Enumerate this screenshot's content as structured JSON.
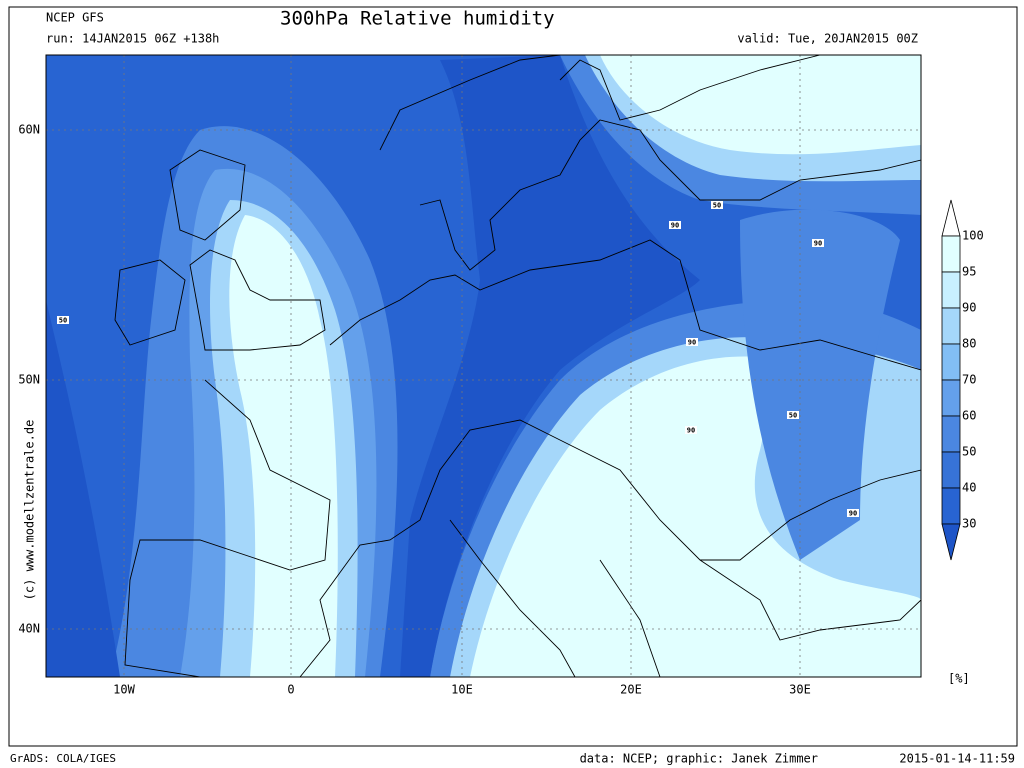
{
  "header": {
    "model": "NCEP GFS",
    "title": "300hPa Relative humidity",
    "run": "run: 14JAN2015 06Z +138h",
    "valid": "valid: Tue, 20JAN2015 00Z"
  },
  "map": {
    "lat_labels": [
      "60N",
      "50N",
      "40N"
    ],
    "lon_labels": [
      "10W",
      "0",
      "10E",
      "20E",
      "30E"
    ],
    "contour_labels": [
      "50",
      "90",
      "50",
      "90",
      "90",
      "90",
      "50",
      "90"
    ]
  },
  "colorbar": {
    "levels": [
      "100",
      "95",
      "90",
      "80",
      "70",
      "60",
      "50",
      "40",
      "30"
    ],
    "colors": [
      "#ffffff",
      "#e1ffff",
      "#c8f0ff",
      "#a5d7fa",
      "#82bef5",
      "#64a0eb",
      "#4b87e1",
      "#3773d7",
      "#2864d2",
      "#1e55c8"
    ],
    "unit": "[%]"
  },
  "credit": "(c) www.modellzentrale.de",
  "footer": {
    "software": "GrADS: COLA/IGES",
    "source": "data: NCEP; graphic: Janek Zimmer",
    "timestamp": "2015-01-14-11:59"
  }
}
